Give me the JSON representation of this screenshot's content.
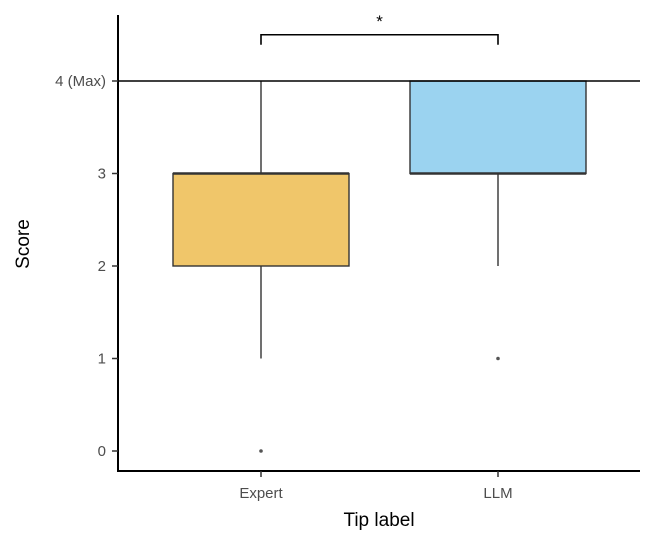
{
  "chart_data": {
    "type": "box",
    "xlabel": "Tip label",
    "ylabel": "Score",
    "ylim": [
      -0.2,
      4.7
    ],
    "yticks": [
      {
        "value": 0,
        "label": "0"
      },
      {
        "value": 1,
        "label": "1"
      },
      {
        "value": 2,
        "label": "2"
      },
      {
        "value": 3,
        "label": "3"
      },
      {
        "value": 4,
        "label": "4 (Max)"
      }
    ],
    "reference_line": 4,
    "grid": false,
    "categories": [
      "Expert",
      "LLM"
    ],
    "boxes": [
      {
        "category": "Expert",
        "whisker_low": 1,
        "q1": 2,
        "median": 3,
        "q3": 3,
        "whisker_high": 4,
        "outliers": [
          0
        ],
        "color": "#f0c66a"
      },
      {
        "category": "LLM",
        "whisker_low": 2,
        "q1": 3,
        "median": 3,
        "q3": 4,
        "whisker_high": 4,
        "outliers": [
          1
        ],
        "color": "#9bd3f0"
      }
    ],
    "significance": {
      "from": "Expert",
      "to": "LLM",
      "label": "*",
      "y": 4.5
    }
  }
}
